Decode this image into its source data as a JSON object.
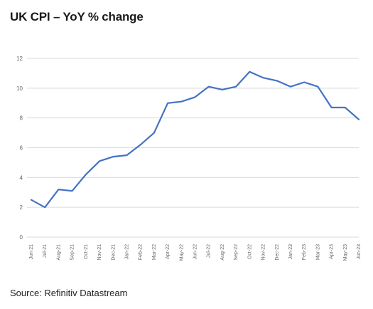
{
  "header": {
    "title": "UK CPI – YoY % change"
  },
  "footer": {
    "source": "Source: Refinitiv Datastream"
  },
  "chart_data": {
    "type": "line",
    "title": "UK CPI – YoY % change",
    "xlabel": "",
    "ylabel": "",
    "ylim": [
      0,
      12
    ],
    "yticks": [
      0,
      2,
      4,
      6,
      8,
      10,
      12
    ],
    "grid": true,
    "legend": "none",
    "line_color": "#4472c4",
    "categories": [
      "Jun-21",
      "Jul-21",
      "Aug-21",
      "Sep-21",
      "Oct-21",
      "Nov-21",
      "Dec-21",
      "Jan-22",
      "Feb-22",
      "Mar-22",
      "Apr-22",
      "May-22",
      "Jun-22",
      "Jul-22",
      "Aug-22",
      "Sep-22",
      "Oct-22",
      "Nov-22",
      "Dec-22",
      "Jan-23",
      "Feb-23",
      "Mar-23",
      "Apr-23",
      "May-23",
      "Jun-23"
    ],
    "series": [
      {
        "values": [
          2.5,
          2.0,
          3.2,
          3.1,
          4.2,
          5.1,
          5.4,
          5.5,
          6.2,
          7.0,
          9.0,
          9.1,
          9.4,
          10.1,
          9.9,
          10.1,
          11.1,
          10.7,
          10.5,
          10.1,
          10.4,
          10.1,
          8.7,
          8.7,
          7.9
        ]
      }
    ]
  }
}
